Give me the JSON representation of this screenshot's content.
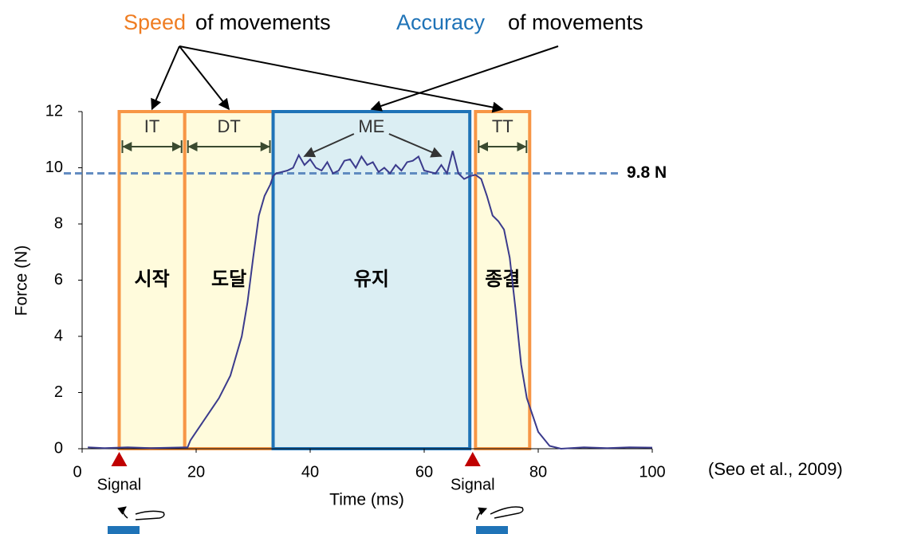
{
  "chart_data": {
    "type": "line",
    "annotations": {
      "speed_word": "Speed",
      "speed_rest": "of movements",
      "accuracy_word": "Accuracy",
      "accuracy_rest": "of movements",
      "citation": "(Seo et al., 2009)"
    },
    "xlabel": "Time (ms)",
    "ylabel": "Force (N)",
    "xlim": [
      0,
      100
    ],
    "ylim": [
      0,
      12
    ],
    "xticks": [
      0,
      20,
      40,
      60,
      80,
      100
    ],
    "yticks": [
      0,
      2,
      4,
      6,
      8,
      10,
      12
    ],
    "color": "#3b3b8c",
    "x": [
      1,
      4,
      8,
      12,
      16,
      18.5,
      19,
      20,
      22,
      24,
      26,
      28,
      29,
      30,
      31,
      32,
      33,
      33.5,
      34,
      35,
      36,
      37,
      38,
      39,
      40,
      41,
      42,
      43,
      44,
      45,
      46,
      47,
      48,
      49,
      50,
      51,
      52,
      53,
      54,
      55,
      56,
      57,
      58,
      59,
      60,
      61,
      62,
      63,
      64,
      65,
      66,
      67,
      68,
      69,
      70,
      71,
      72,
      73,
      74,
      75,
      76,
      77,
      78,
      79,
      80,
      82,
      84,
      88,
      92,
      96,
      100
    ],
    "values": [
      0.05,
      0.02,
      0.05,
      0.02,
      0.04,
      0.05,
      0.3,
      0.6,
      1.2,
      1.8,
      2.6,
      4.0,
      5.2,
      6.8,
      8.3,
      9.0,
      9.4,
      9.7,
      9.8,
      9.85,
      9.9,
      10.0,
      10.45,
      10.1,
      10.3,
      10.0,
      9.9,
      10.2,
      9.8,
      9.9,
      10.25,
      10.3,
      10.0,
      10.4,
      10.1,
      10.2,
      9.85,
      10.0,
      9.8,
      10.1,
      9.9,
      10.2,
      10.25,
      10.4,
      9.9,
      9.85,
      9.8,
      10.1,
      9.8,
      10.6,
      9.8,
      9.6,
      9.7,
      9.75,
      9.6,
      9.0,
      8.3,
      8.1,
      7.8,
      6.8,
      5.0,
      3.0,
      1.8,
      1.2,
      0.6,
      0.1,
      0.0,
      0.05,
      0.02,
      0.05,
      0.04
    ],
    "reference": {
      "value": 9.8,
      "label": "9.8 N"
    },
    "phases": [
      {
        "label": "IT",
        "name": "시작",
        "start": 6.5,
        "end": 18,
        "color": "#f79646"
      },
      {
        "label": "DT",
        "name": "도달",
        "start": 18,
        "end": 33.5,
        "color": "#f79646"
      },
      {
        "label": "ME",
        "name": "유지",
        "start": 33.5,
        "end": 68,
        "color": "#1f73b7"
      },
      {
        "label": "TT",
        "name": "종결",
        "start": 69,
        "end": 78.5,
        "color": "#f79646"
      }
    ],
    "signals": [
      {
        "x": 6.5,
        "label": "Signal"
      },
      {
        "x": 68.5,
        "label": "Signal"
      }
    ]
  }
}
